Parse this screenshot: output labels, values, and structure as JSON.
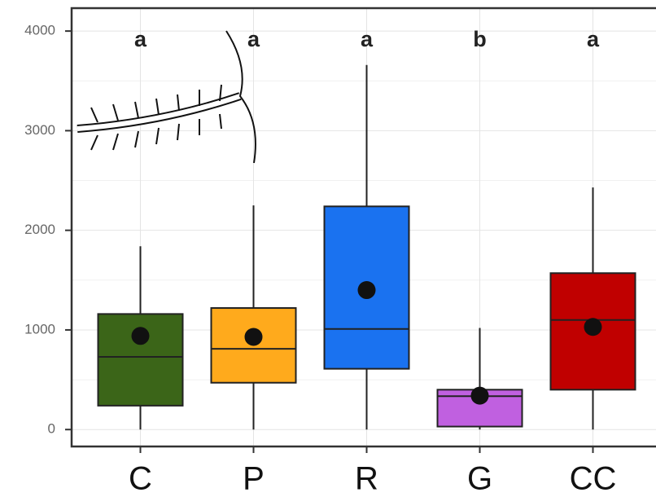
{
  "chart_data": {
    "type": "box",
    "categories": [
      "C",
      "P",
      "R",
      "G",
      "CC"
    ],
    "annotations": [
      "a",
      "a",
      "a",
      "b",
      "a"
    ],
    "colors": [
      "#3b6518",
      "#ffaa1c",
      "#1a72f0",
      "#c060e0",
      "#c00000"
    ],
    "boxes": [
      {
        "min": 0,
        "q1": 240,
        "median": 730,
        "q3": 1160,
        "max": 1840,
        "mean": 940
      },
      {
        "min": 0,
        "q1": 470,
        "median": 810,
        "q3": 1220,
        "max": 2250,
        "mean": 930
      },
      {
        "min": 0,
        "q1": 610,
        "median": 1010,
        "q3": 2240,
        "max": 3660,
        "mean": 1400
      },
      {
        "min": 0,
        "q1": 30,
        "median": 335,
        "q3": 400,
        "max": 1020,
        "mean": 340
      },
      {
        "min": 0,
        "q1": 400,
        "median": 1100,
        "q3": 1570,
        "max": 2430,
        "mean": 1030
      }
    ],
    "ylim": [
      -170,
      4230
    ],
    "yticks": [
      0,
      1000,
      2000,
      3000,
      4000
    ],
    "grid": true
  }
}
